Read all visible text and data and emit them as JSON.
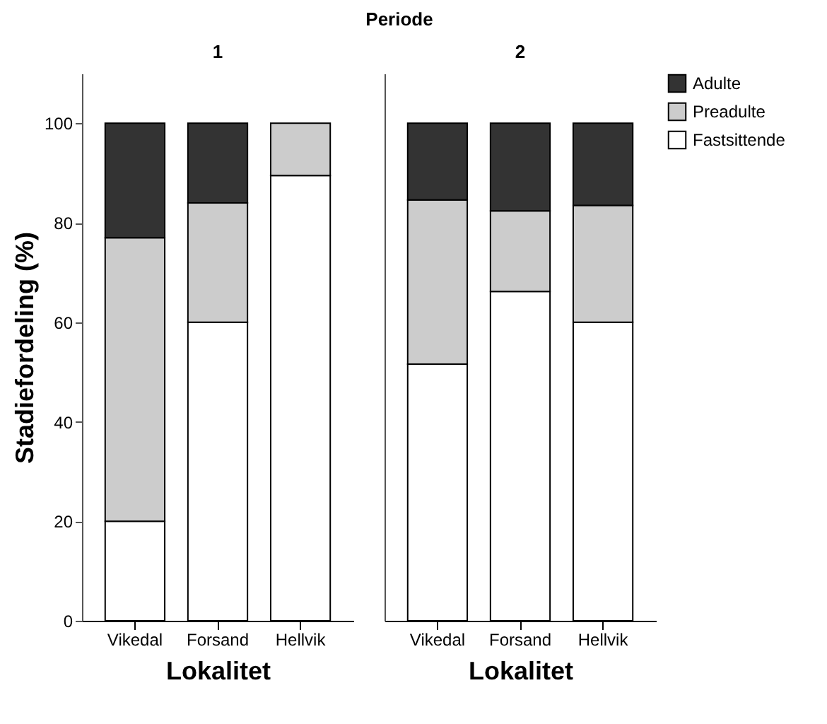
{
  "chart_data": [
    {
      "type": "bar",
      "stacked": true,
      "title": "1",
      "annotations": [
        "Periode"
      ],
      "xlabel": "Lokalitet",
      "ylabel": "Stadiefordeling (%)",
      "categories": [
        "Vikedal",
        "Forsand",
        "Hellvik"
      ],
      "ylim": [
        0,
        110
      ],
      "yticks": [
        0,
        20,
        40,
        60,
        80,
        100
      ],
      "legend": "top right",
      "series": [
        {
          "name": "Fastsittende",
          "color": "#ffffff",
          "values": [
            20,
            60,
            89.5
          ]
        },
        {
          "name": "Preadulte",
          "color": "#cccccc",
          "values": [
            57,
            24,
            10.5
          ]
        },
        {
          "name": "Adulte",
          "color": "#333333",
          "values": [
            23,
            16,
            null
          ]
        }
      ]
    },
    {
      "type": "bar",
      "stacked": true,
      "title": "2",
      "xlabel": "Lokalitet",
      "categories": [
        "Vikedal",
        "Forsand",
        "Hellvik"
      ],
      "ylim": [
        0,
        110
      ],
      "yticks": [
        0,
        20,
        40,
        60,
        80,
        100
      ],
      "tick_labels": "x",
      "legend": "top right",
      "series": [
        {
          "name": "Fastsittende",
          "color": "#ffffff",
          "values": [
            51.6,
            66.2,
            60
          ]
        },
        {
          "name": "Preadulte",
          "color": "#cccccc",
          "values": [
            33,
            16.2,
            23.5
          ]
        },
        {
          "name": "Adulte",
          "color": "#333333",
          "values": [
            15.4,
            17.6,
            16.5
          ]
        }
      ]
    }
  ]
}
